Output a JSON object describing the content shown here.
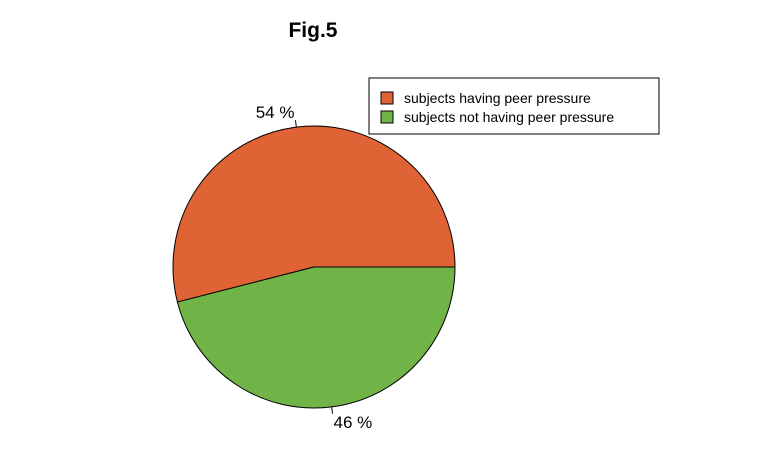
{
  "chart_data": {
    "type": "pie",
    "title": "Fig.5",
    "slices": [
      {
        "label": "subjects having peer pressure",
        "value": 54,
        "display": "54 %",
        "color": "#E06336"
      },
      {
        "label": "subjects not having peer pressure",
        "value": 46,
        "display": "46 %",
        "color": "#70B347"
      }
    ],
    "legend": {
      "placement": "top-right",
      "entries": [
        "subjects having peer pressure",
        "subjects not having peer pressure"
      ]
    }
  }
}
